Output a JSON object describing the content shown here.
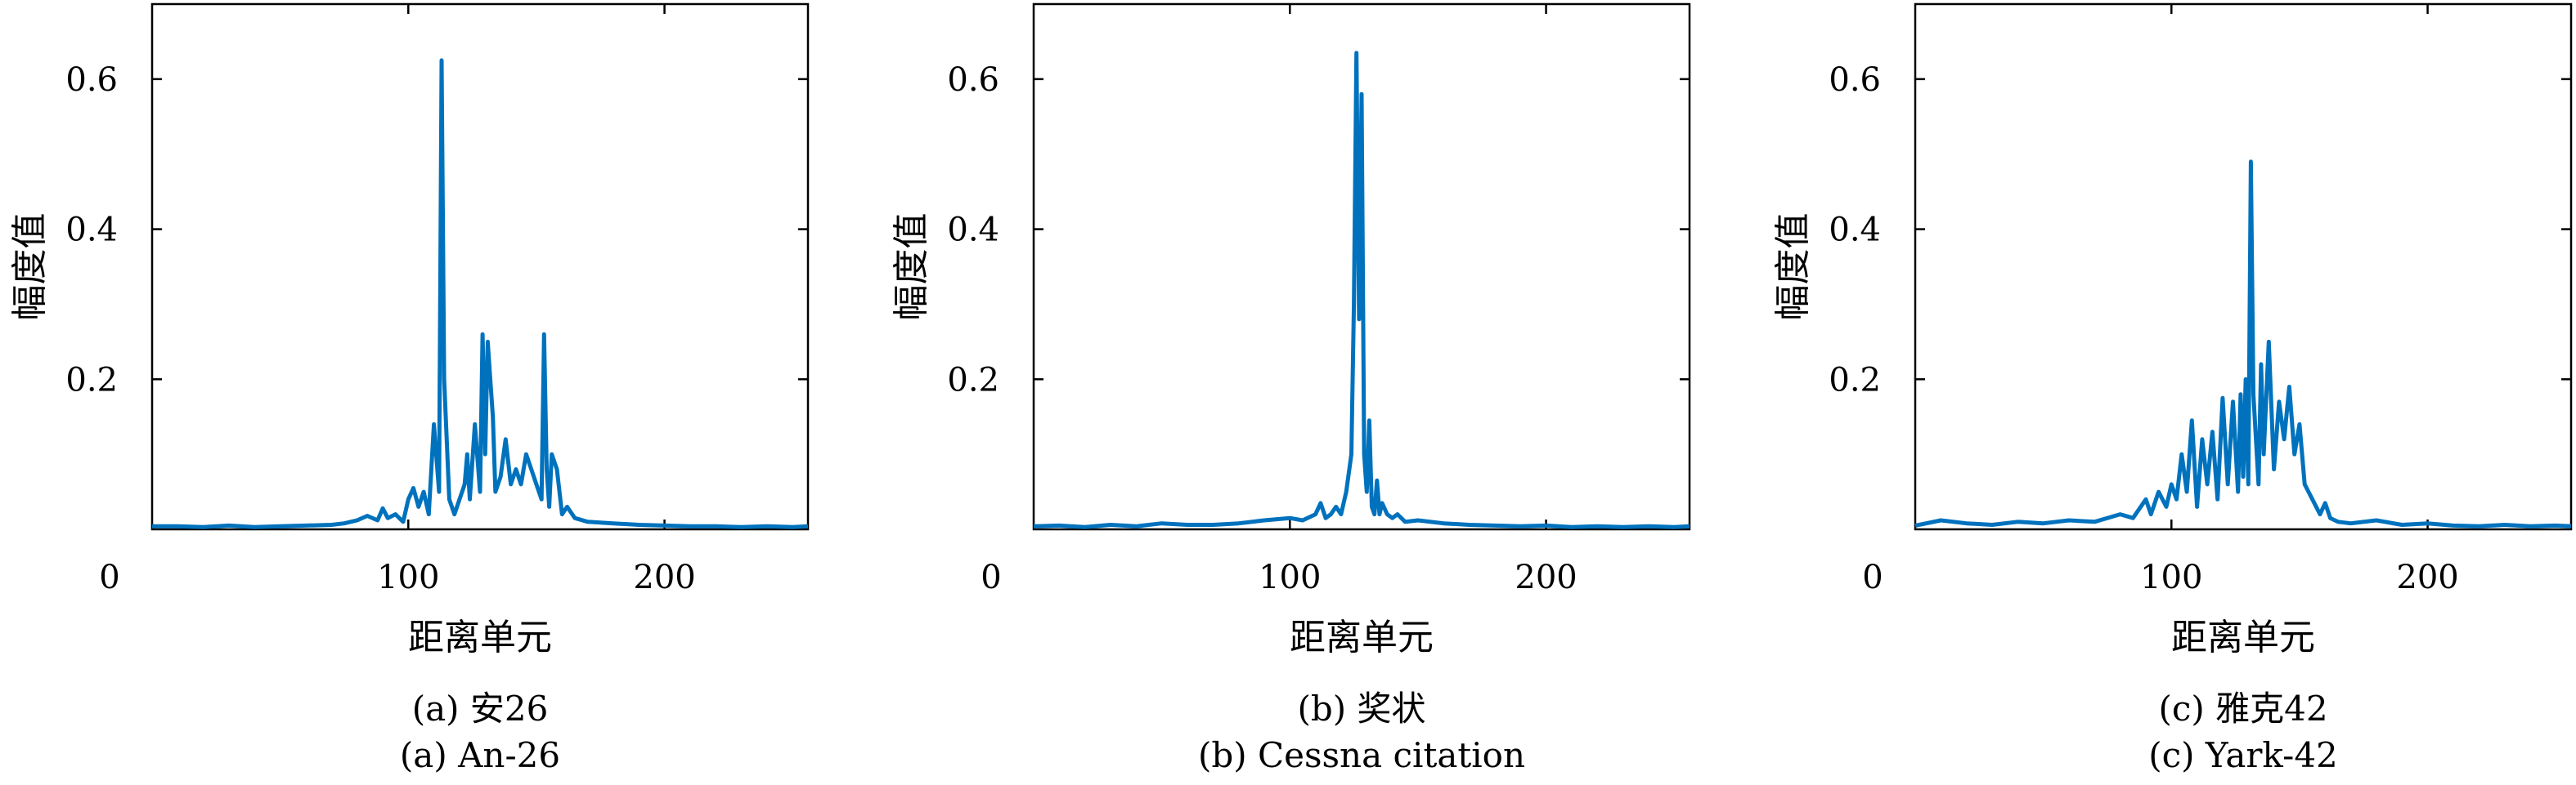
{
  "chart_data": [
    {
      "type": "line",
      "id": "a",
      "caption_cn": "(a) 安26",
      "caption_en": "(a) An-26",
      "xlabel": "距离单元",
      "ylabel": "幅度值",
      "xlim": [
        0,
        256
      ],
      "ylim": [
        0,
        0.7
      ],
      "xticks": [
        0,
        100,
        200
      ],
      "yticks": [
        0.2,
        0.4,
        0.6
      ],
      "grid": false,
      "color": "#0072BD",
      "series": [
        {
          "x": [
            0,
            10,
            20,
            30,
            40,
            50,
            60,
            70,
            75,
            80,
            84,
            88,
            90,
            92,
            95,
            98,
            100,
            102,
            104,
            106,
            108,
            110,
            112,
            113,
            114,
            116,
            118,
            120,
            122,
            123,
            124,
            126,
            128,
            129,
            130,
            131,
            132,
            133,
            134,
            136,
            138,
            140,
            142,
            144,
            146,
            148,
            150,
            152,
            153,
            154,
            155,
            156,
            158,
            160,
            162,
            165,
            170,
            180,
            190,
            200,
            210,
            220,
            230,
            240,
            250,
            256
          ],
          "y": [
            0.004,
            0.004,
            0.003,
            0.005,
            0.003,
            0.004,
            0.005,
            0.006,
            0.008,
            0.012,
            0.018,
            0.012,
            0.028,
            0.015,
            0.02,
            0.01,
            0.04,
            0.055,
            0.03,
            0.05,
            0.02,
            0.14,
            0.05,
            0.625,
            0.2,
            0.04,
            0.02,
            0.04,
            0.06,
            0.1,
            0.04,
            0.14,
            0.05,
            0.26,
            0.1,
            0.25,
            0.2,
            0.15,
            0.05,
            0.07,
            0.12,
            0.06,
            0.08,
            0.06,
            0.1,
            0.08,
            0.06,
            0.04,
            0.26,
            0.08,
            0.03,
            0.1,
            0.08,
            0.02,
            0.03,
            0.015,
            0.01,
            0.008,
            0.006,
            0.005,
            0.004,
            0.004,
            0.003,
            0.004,
            0.003,
            0.004
          ]
        }
      ]
    },
    {
      "type": "line",
      "id": "b",
      "caption_cn": "(b) 奖状",
      "caption_en": "(b) Cessna citation",
      "xlabel": "距离单元",
      "ylabel": "幅度值",
      "xlim": [
        0,
        256
      ],
      "ylim": [
        0,
        0.7
      ],
      "xticks": [
        0,
        100,
        200
      ],
      "yticks": [
        0.2,
        0.4,
        0.6
      ],
      "grid": false,
      "color": "#0072BD",
      "series": [
        {
          "x": [
            0,
            10,
            20,
            30,
            40,
            50,
            60,
            70,
            80,
            90,
            100,
            105,
            110,
            112,
            114,
            116,
            118,
            120,
            122,
            124,
            125,
            126,
            127,
            128,
            129,
            130,
            131,
            132,
            133,
            134,
            135,
            136,
            138,
            140,
            142,
            145,
            150,
            160,
            170,
            180,
            190,
            200,
            210,
            220,
            230,
            240,
            250,
            256
          ],
          "y": [
            0.004,
            0.005,
            0.003,
            0.006,
            0.004,
            0.008,
            0.006,
            0.006,
            0.008,
            0.012,
            0.015,
            0.012,
            0.02,
            0.035,
            0.015,
            0.02,
            0.03,
            0.02,
            0.05,
            0.1,
            0.3,
            0.635,
            0.28,
            0.58,
            0.1,
            0.05,
            0.145,
            0.03,
            0.02,
            0.065,
            0.02,
            0.035,
            0.02,
            0.015,
            0.02,
            0.01,
            0.012,
            0.008,
            0.006,
            0.005,
            0.004,
            0.005,
            0.003,
            0.004,
            0.003,
            0.004,
            0.003,
            0.004
          ]
        }
      ]
    },
    {
      "type": "line",
      "id": "c",
      "caption_cn": "(c) 雅克42",
      "caption_en": "(c) Yark-42",
      "xlabel": "距离单元",
      "ylabel": "幅度值",
      "xlim": [
        0,
        256
      ],
      "ylim": [
        0,
        0.7
      ],
      "xticks": [
        0,
        100,
        200
      ],
      "yticks": [
        0.2,
        0.4,
        0.6
      ],
      "grid": false,
      "color": "#0072BD",
      "series": [
        {
          "x": [
            0,
            10,
            20,
            30,
            40,
            50,
            60,
            70,
            80,
            85,
            90,
            92,
            95,
            98,
            100,
            102,
            104,
            106,
            108,
            110,
            112,
            114,
            116,
            118,
            120,
            122,
            124,
            126,
            127,
            128,
            129,
            130,
            131,
            132,
            134,
            135,
            136,
            138,
            140,
            142,
            144,
            146,
            148,
            150,
            152,
            155,
            158,
            160,
            162,
            165,
            170,
            180,
            190,
            200,
            210,
            220,
            230,
            240,
            250,
            256
          ],
          "y": [
            0.005,
            0.012,
            0.008,
            0.006,
            0.01,
            0.008,
            0.012,
            0.01,
            0.02,
            0.015,
            0.04,
            0.02,
            0.05,
            0.03,
            0.06,
            0.04,
            0.1,
            0.05,
            0.145,
            0.03,
            0.12,
            0.06,
            0.13,
            0.04,
            0.175,
            0.06,
            0.17,
            0.05,
            0.18,
            0.07,
            0.2,
            0.06,
            0.49,
            0.18,
            0.06,
            0.22,
            0.1,
            0.25,
            0.08,
            0.17,
            0.12,
            0.19,
            0.1,
            0.14,
            0.06,
            0.04,
            0.02,
            0.035,
            0.015,
            0.01,
            0.008,
            0.012,
            0.006,
            0.008,
            0.005,
            0.004,
            0.006,
            0.004,
            0.005,
            0.004
          ]
        }
      ]
    }
  ]
}
